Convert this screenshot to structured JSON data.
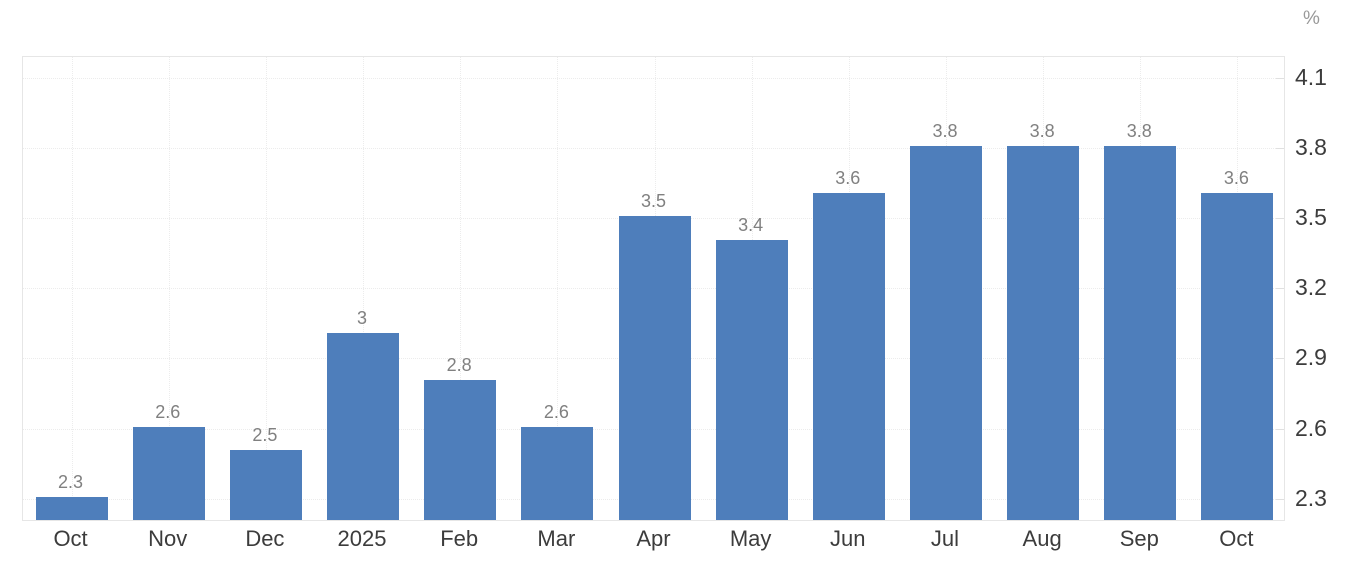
{
  "chart_data": {
    "type": "bar",
    "title": "",
    "xlabel": "",
    "ylabel": "%",
    "unit_label": "%",
    "categories": [
      "Oct",
      "Nov",
      "Dec",
      "2025",
      "Feb",
      "Mar",
      "Apr",
      "May",
      "Jun",
      "Jul",
      "Aug",
      "Sep",
      "Oct"
    ],
    "values": [
      2.3,
      2.6,
      2.5,
      3,
      2.8,
      2.6,
      3.5,
      3.4,
      3.6,
      3.8,
      3.8,
      3.8,
      3.6
    ],
    "value_labels": [
      "2.3",
      "2.6",
      "2.5",
      "3",
      "2.8",
      "2.6",
      "3.5",
      "3.4",
      "3.6",
      "3.8",
      "3.8",
      "3.8",
      "3.6"
    ],
    "y_ticks": [
      2.3,
      2.6,
      2.9,
      3.2,
      3.5,
      3.8,
      4.1
    ],
    "y_tick_labels": [
      "2.3",
      "2.6",
      "2.9",
      "3.2",
      "3.5",
      "3.8",
      "4.1"
    ],
    "ylim": [
      2.2,
      4.19
    ],
    "grid": true,
    "legend": "none",
    "colors": {
      "bar": "#4e7ebb",
      "value_label": "#808080",
      "x_tick_label": "#3c3c3c",
      "y_tick_label": "#3c3c3c",
      "unit_label": "#999999",
      "gridline": "#ececec",
      "plot_border": "#e6e6e6",
      "background": "#ffffff"
    }
  }
}
